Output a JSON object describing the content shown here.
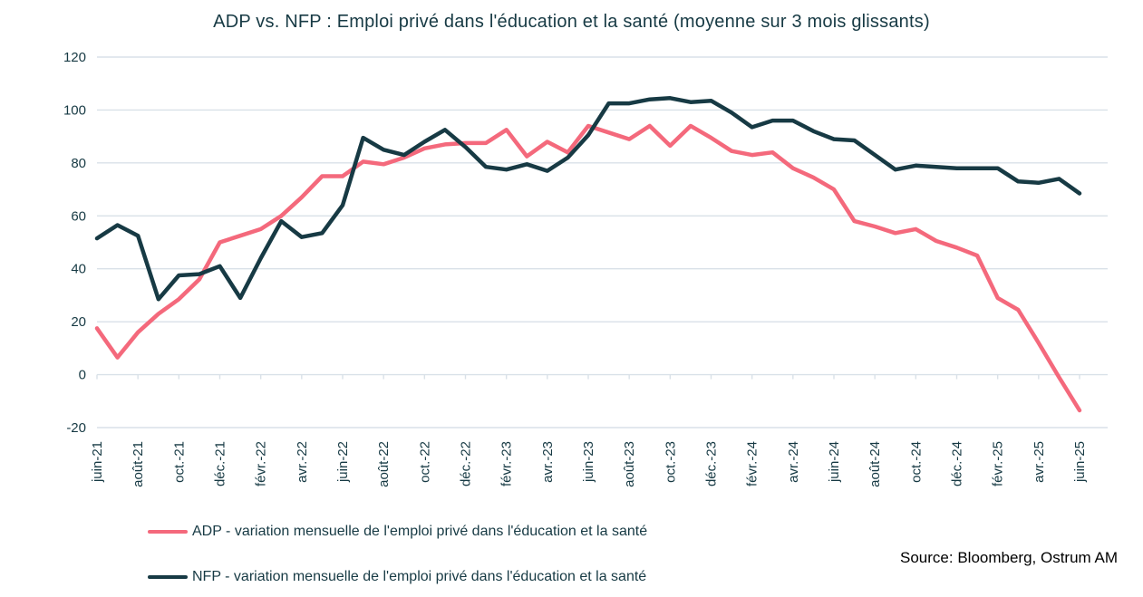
{
  "title": "ADP vs. NFP : Emploi privé dans l'éducation et la santé (moyenne sur 3 mois glissants)",
  "source": "Source: Bloomberg, Ostrum AM",
  "colors": {
    "adp": "#f4697c",
    "nfp": "#173a44",
    "grid": "#d9e1e8",
    "axis_text": "#173a44",
    "title_text": "#173a44",
    "source_text": "#000000",
    "background": "#ffffff"
  },
  "legend": [
    {
      "series": "ADP",
      "color": "#f4697c",
      "label": "ADP - variation mensuelle de l'emploi privé dans l'éducation et la santé"
    },
    {
      "series": "NFP",
      "color": "#173a44",
      "label": "NFP - variation mensuelle de l'emploi privé dans l'éducation et la santé"
    }
  ],
  "chart_data": {
    "type": "line",
    "title": "ADP vs. NFP : Emploi privé dans l'éducation et la santé (moyenne sur 3 mois glissants)",
    "xlabel": "",
    "ylabel": "",
    "ylim": [
      -20,
      120
    ],
    "y_ticks": [
      -20,
      0,
      20,
      40,
      60,
      80,
      100,
      120
    ],
    "grid": true,
    "legend_position": "bottom-left",
    "x": [
      "juin-21",
      "juil.-21",
      "août-21",
      "sept.-21",
      "oct.-21",
      "nov.-21",
      "déc.-21",
      "janv.-22",
      "févr.-22",
      "mars-22",
      "avr.-22",
      "mai-22",
      "juin-22",
      "juil.-22",
      "août-22",
      "sept.-22",
      "oct.-22",
      "nov.-22",
      "déc.-22",
      "janv.-23",
      "févr.-23",
      "mars-23",
      "avr.-23",
      "mai-23",
      "juin-23",
      "juil.-23",
      "août-23",
      "sept.-23",
      "oct.-23",
      "nov.-23",
      "déc.-23",
      "janv.-24",
      "févr.-24",
      "mars-24",
      "avr.-24",
      "mai-24",
      "juin-24",
      "juil.-24",
      "août-24",
      "sept.-24",
      "oct.-24",
      "nov.-24",
      "déc.-24",
      "janv.-25",
      "févr.-25",
      "mars-25",
      "avr.-25",
      "mai-25",
      "juin-25"
    ],
    "x_tick_labels": [
      "juin-21",
      "août-21",
      "oct.-21",
      "déc.-21",
      "févr.-22",
      "avr.-22",
      "juin-22",
      "août-22",
      "oct.-22",
      "déc.-22",
      "févr.-23",
      "avr.-23",
      "juin-23",
      "août-23",
      "oct.-23",
      "déc.-23",
      "févr.-24",
      "avr.-24",
      "juin-24",
      "août-24",
      "oct.-24",
      "déc.-24",
      "févr.-25",
      "avr.-25",
      "juin-25"
    ],
    "series": [
      {
        "name": "ADP - variation mensuelle de l'emploi privé dans l'éducation et la santé",
        "color": "#f4697c",
        "values": [
          17.5,
          6.5,
          16,
          23,
          28.5,
          36,
          50,
          52.5,
          55,
          60,
          67,
          75,
          75,
          80.5,
          79.5,
          82,
          85.5,
          87,
          87.5,
          87.5,
          92.5,
          82.5,
          88,
          84,
          94,
          91.5,
          89,
          94,
          86.5,
          94,
          89.5,
          84.5,
          83,
          84,
          78,
          74.5,
          70,
          58,
          56,
          53.5,
          55,
          50.5,
          48,
          45,
          29,
          24.5,
          12,
          -1,
          -13.5
        ]
      },
      {
        "name": "NFP - variation mensuelle de l'emploi privé dans l'éducation et la santé",
        "color": "#173a44",
        "values": [
          51.5,
          56.5,
          52.5,
          28.5,
          37.5,
          38,
          41,
          29,
          44,
          58,
          52,
          53.5,
          64,
          89.5,
          85,
          83,
          88,
          92.5,
          86,
          78.5,
          77.5,
          79.5,
          77,
          82,
          90.5,
          102.5,
          102.5,
          104,
          104.5,
          103,
          103.5,
          99,
          93.5,
          96,
          96,
          92,
          89,
          88.5,
          83,
          77.5,
          79,
          78.5,
          78,
          78,
          78,
          73,
          72.5,
          74,
          68.5
        ]
      }
    ]
  }
}
